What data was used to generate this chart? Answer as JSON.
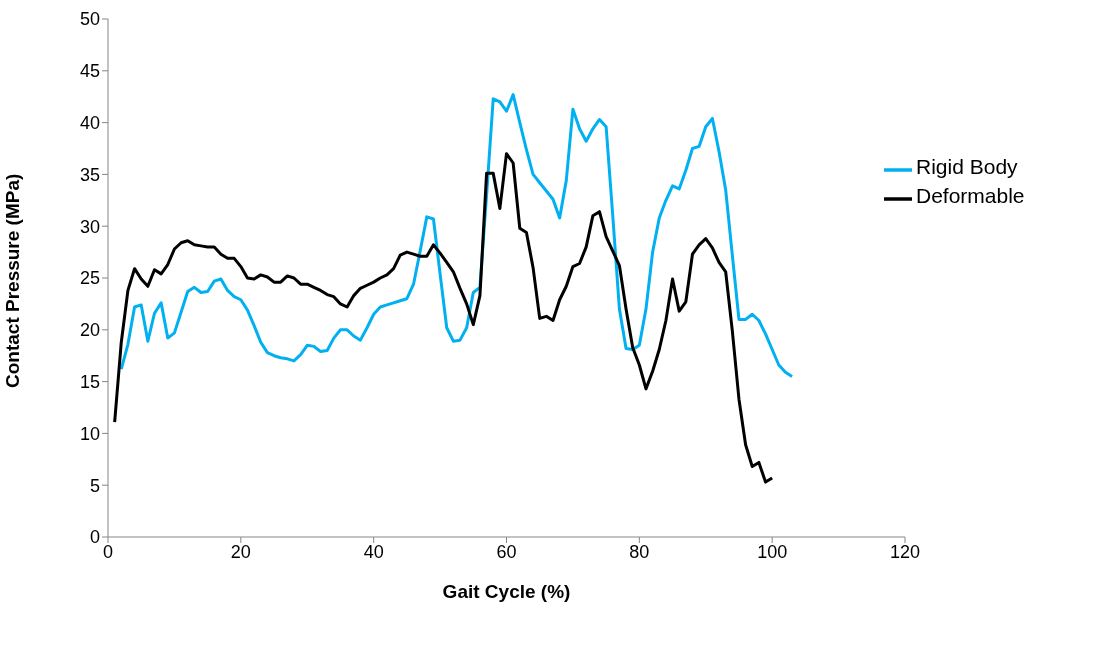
{
  "chart_data": {
    "type": "line",
    "xlabel": "Gait Cycle (%)",
    "ylabel": "Contact Pressure (MPa)",
    "xlim": [
      0,
      120
    ],
    "xticks": [
      0,
      20,
      40,
      60,
      80,
      100,
      120
    ],
    "ylim": [
      0,
      50
    ],
    "yticks": [
      0,
      5,
      10,
      15,
      20,
      25,
      30,
      35,
      40,
      45,
      50
    ],
    "grid": false,
    "legend": "right",
    "marker": "none",
    "line_style": "solid",
    "series": [
      {
        "name": "Rigid Body",
        "color": "#00b0f0",
        "x": [
          2,
          3,
          4,
          5,
          6,
          7,
          8,
          9,
          10,
          11,
          12,
          13,
          14,
          15,
          16,
          17,
          18,
          19,
          20,
          21,
          22,
          23,
          24,
          25,
          26,
          27,
          28,
          29,
          30,
          31,
          32,
          33,
          34,
          35,
          36,
          37,
          38,
          39,
          40,
          41,
          42,
          43,
          44,
          45,
          46,
          47,
          48,
          49,
          50,
          51,
          52,
          53,
          54,
          55,
          56,
          57,
          58,
          59,
          60,
          61,
          62,
          63,
          64,
          65,
          66,
          67,
          68,
          69,
          70,
          71,
          72,
          73,
          74,
          75,
          76,
          77,
          78,
          79,
          80,
          81,
          82,
          83,
          84,
          85,
          86,
          87,
          88,
          89,
          90,
          91,
          92,
          93,
          94,
          95,
          96,
          97,
          98,
          99,
          100,
          101,
          102,
          103
        ],
        "values": [
          16.2,
          18.6,
          22.2,
          22.4,
          18.9,
          21.6,
          22.6,
          19.2,
          19.7,
          21.7,
          23.7,
          24.1,
          23.6,
          23.7,
          24.7,
          24.9,
          23.8,
          23.2,
          22.9,
          21.9,
          20.4,
          18.8,
          17.8,
          17.5,
          17.3,
          17.2,
          17.0,
          17.6,
          18.5,
          18.4,
          17.9,
          18.0,
          19.2,
          20.0,
          20.0,
          19.4,
          19.0,
          20.2,
          21.5,
          22.2,
          22.4,
          22.6,
          22.8,
          23.0,
          24.4,
          27.6,
          30.9,
          30.7,
          25.4,
          20.2,
          18.9,
          19.0,
          20.2,
          23.6,
          24.1,
          33.0,
          42.3,
          42.0,
          41.1,
          42.7,
          40.0,
          37.4,
          35.0,
          34.2,
          33.4,
          32.6,
          30.8,
          34.4,
          41.3,
          39.4,
          38.2,
          39.4,
          40.3,
          39.6,
          31.0,
          22.0,
          18.2,
          18.1,
          18.5,
          22.0,
          27.5,
          30.8,
          32.5,
          33.9,
          33.6,
          35.4,
          37.5,
          37.7,
          39.6,
          40.4,
          37.2,
          33.5,
          27.2,
          21.0,
          21.0,
          21.5,
          20.9,
          19.6,
          18.1,
          16.6,
          15.9,
          15.5
        ]
      },
      {
        "name": "Deformable",
        "color": "#000000",
        "x": [
          1,
          2,
          3,
          4,
          5,
          6,
          7,
          8,
          9,
          10,
          11,
          12,
          13,
          14,
          15,
          16,
          17,
          18,
          19,
          20,
          21,
          22,
          23,
          24,
          25,
          26,
          27,
          28,
          29,
          30,
          31,
          32,
          33,
          34,
          35,
          36,
          37,
          38,
          39,
          40,
          41,
          42,
          43,
          44,
          45,
          46,
          47,
          48,
          49,
          50,
          51,
          52,
          53,
          54,
          55,
          56,
          57,
          58,
          59,
          60,
          61,
          62,
          63,
          64,
          65,
          66,
          67,
          68,
          69,
          70,
          71,
          72,
          73,
          74,
          75,
          76,
          77,
          78,
          79,
          80,
          81,
          82,
          83,
          84,
          85,
          86,
          87,
          88,
          89,
          90,
          91,
          92,
          93,
          94,
          95,
          96,
          97,
          98,
          99,
          100
        ],
        "values": [
          11.1,
          18.8,
          23.8,
          25.9,
          24.9,
          24.2,
          25.8,
          25.4,
          26.3,
          27.8,
          28.4,
          28.6,
          28.2,
          28.1,
          28.0,
          28.0,
          27.3,
          26.9,
          26.9,
          26.1,
          25.0,
          24.9,
          25.3,
          25.1,
          24.6,
          24.6,
          25.2,
          25.0,
          24.4,
          24.4,
          24.1,
          23.8,
          23.4,
          23.2,
          22.5,
          22.2,
          23.3,
          24.0,
          24.3,
          24.6,
          25.0,
          25.3,
          25.9,
          27.2,
          27.5,
          27.3,
          27.1,
          27.1,
          28.2,
          27.4,
          26.5,
          25.6,
          24.0,
          22.5,
          20.5,
          23.3,
          35.1,
          35.1,
          31.7,
          37.0,
          36.1,
          29.8,
          29.4,
          26.0,
          21.1,
          21.3,
          20.9,
          22.9,
          24.2,
          26.1,
          26.4,
          28.0,
          31.0,
          31.4,
          29.0,
          27.6,
          26.2,
          22.0,
          18.3,
          16.6,
          14.3,
          16.0,
          18.1,
          20.9,
          24.9,
          21.8,
          22.7,
          27.3,
          28.2,
          28.8,
          27.9,
          26.5,
          25.6,
          19.9,
          13.3,
          8.9,
          6.8,
          7.2,
          5.3,
          5.7
        ]
      }
    ]
  }
}
